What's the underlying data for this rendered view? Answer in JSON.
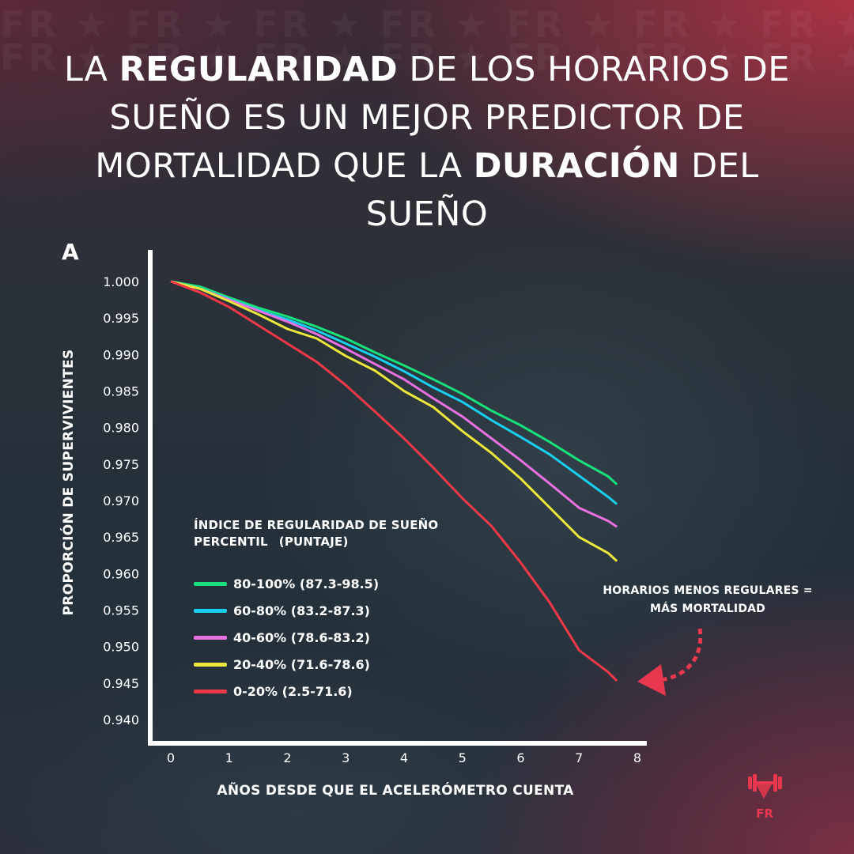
{
  "title": {
    "part1": "LA ",
    "bold1": "REGULARIDAD",
    "part2": " DE LOS HORARIOS DE SUEÑO ES UN MEJOR PREDICTOR DE MORTALIDAD QUE LA ",
    "bold2": "DURACIÓN",
    "part3": " DEL SUEÑO"
  },
  "watermark_text": "FR",
  "logo_text": "FR",
  "panel_letter": "A",
  "colors": {
    "accent_red": "#e8384f",
    "axis": "#ffffff"
  },
  "legend": {
    "title_line1": "ÍNDICE DE REGULARIDAD DE SUEÑO",
    "title_line2a": "PERCENTIL",
    "title_line2b": "(PUNTAJE)"
  },
  "annotation": {
    "line1": "HORARIOS MENOS REGULARES =",
    "line2": "MÁS MORTALIDAD"
  },
  "chart_data": {
    "type": "line",
    "xlabel": "AÑOS DESDE QUE EL ACELERÓMETRO CUENTA",
    "ylabel": "PROPORCIÓN DE SUPERVIVIENTES",
    "xlim": [
      0,
      8
    ],
    "ylim": [
      0.94,
      1.0
    ],
    "x_ticks": [
      "0",
      "1",
      "2",
      "3",
      "4",
      "5",
      "6",
      "7",
      "8"
    ],
    "y_ticks": [
      "1.000",
      "0.995",
      "0.990",
      "0.985",
      "0.980",
      "0.975",
      "0.970",
      "0.965",
      "0.960",
      "0.955",
      "0.950",
      "0.945",
      "0.940"
    ],
    "grid": false,
    "legend_position": "bottom-left",
    "x": [
      0,
      0.5,
      1,
      1.5,
      2,
      2.5,
      3,
      3.5,
      4,
      4.5,
      5,
      5.5,
      6,
      6.5,
      7,
      7.5,
      7.65
    ],
    "series": [
      {
        "name": "80-100% (87.3-98.5)",
        "color": "#18e07a",
        "values": [
          1.0,
          0.9993,
          0.9978,
          0.9964,
          0.9952,
          0.9938,
          0.9922,
          0.9903,
          0.9885,
          0.9866,
          0.9846,
          0.9823,
          0.9803,
          0.978,
          0.9755,
          0.9733,
          0.9722
        ]
      },
      {
        "name": "60-80% (83.2-87.3)",
        "color": "#19cff0",
        "values": [
          1.0,
          0.999,
          0.9976,
          0.9961,
          0.9948,
          0.9933,
          0.9915,
          0.9897,
          0.9877,
          0.9855,
          0.9835,
          0.981,
          0.9787,
          0.9763,
          0.9734,
          0.9705,
          0.9695
        ]
      },
      {
        "name": "40-60% (78.6-83.2)",
        "color": "#e870e0",
        "values": [
          1.0,
          0.999,
          0.9975,
          0.996,
          0.9945,
          0.9928,
          0.9908,
          0.9887,
          0.9866,
          0.984,
          0.9815,
          0.9785,
          0.9755,
          0.9723,
          0.969,
          0.9672,
          0.9664
        ]
      },
      {
        "name": "20-40% (71.6-78.6)",
        "color": "#ece73c",
        "values": [
          1.0,
          0.999,
          0.9973,
          0.9955,
          0.9935,
          0.9922,
          0.9898,
          0.9878,
          0.985,
          0.9828,
          0.9795,
          0.9765,
          0.973,
          0.969,
          0.965,
          0.9628,
          0.9617
        ]
      },
      {
        "name": "0-20% (2.5-71.6)",
        "color": "#f03848",
        "values": [
          1.0,
          0.9985,
          0.9965,
          0.994,
          0.9915,
          0.989,
          0.9858,
          0.9822,
          0.9785,
          0.9745,
          0.9703,
          0.9665,
          0.9615,
          0.956,
          0.9495,
          0.9465,
          0.9453
        ]
      }
    ]
  }
}
